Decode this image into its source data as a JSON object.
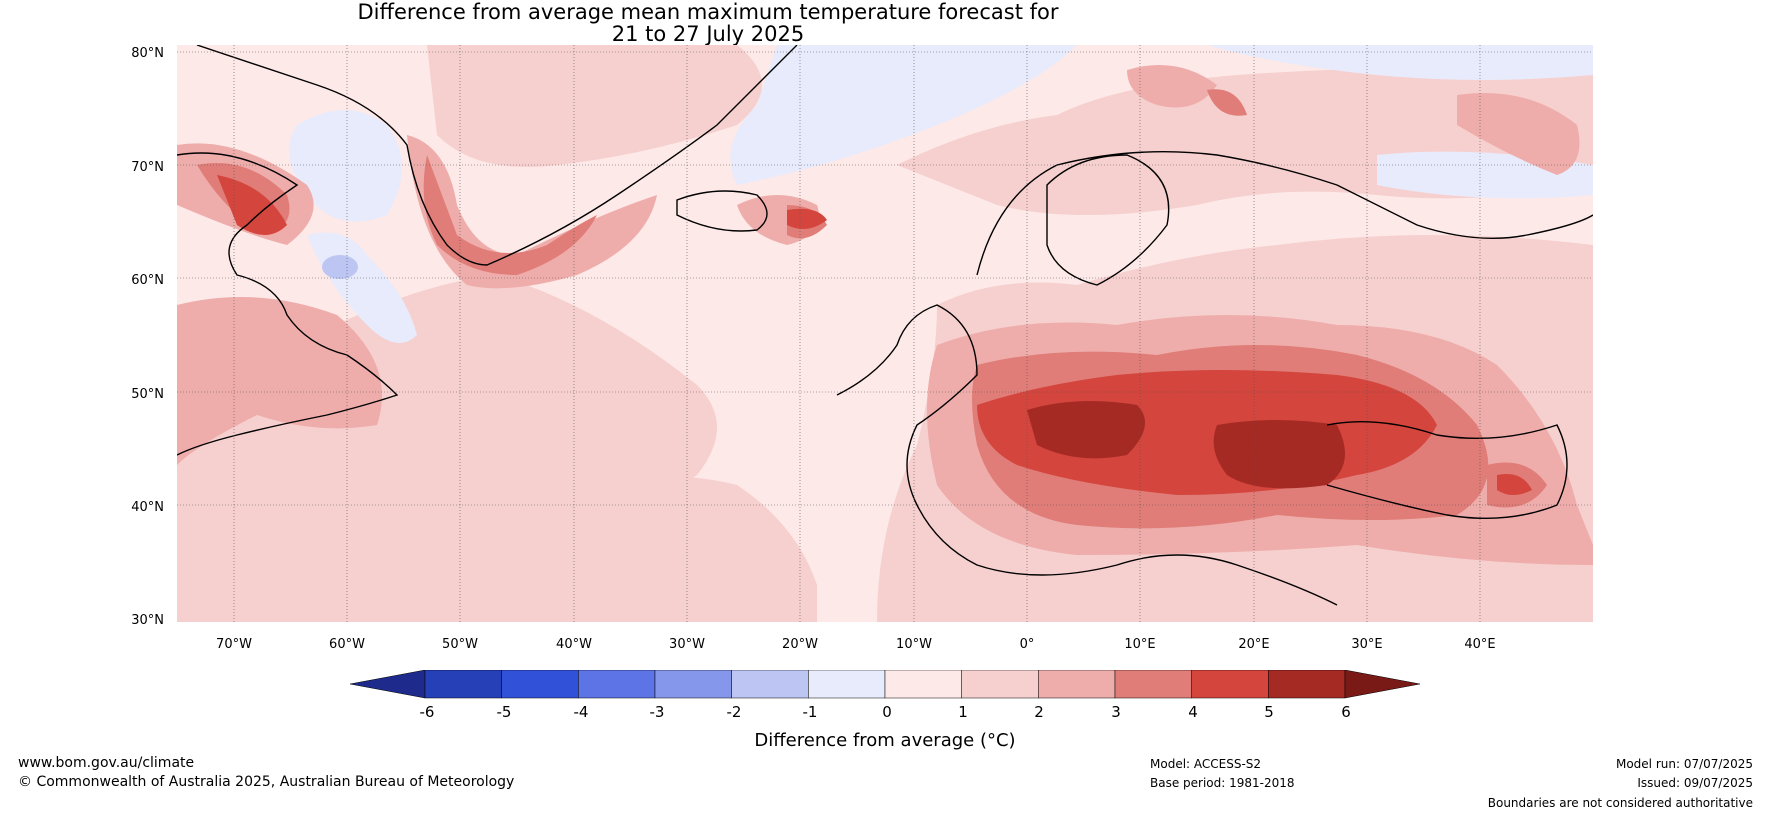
{
  "title": {
    "line1": "Difference from average mean maximum temperature forecast for",
    "line2": "21 to 27 July 2025"
  },
  "map": {
    "lat_ticks": [
      "80°N",
      "70°N",
      "60°N",
      "50°N",
      "40°N",
      "30°N"
    ],
    "lon_ticks": [
      "70°W",
      "60°W",
      "50°W",
      "40°W",
      "30°W",
      "20°W",
      "10°W",
      "0°",
      "10°E",
      "20°E",
      "30°E",
      "40°E"
    ]
  },
  "colorbar": {
    "label": "Difference from average (°C)",
    "ticks": [
      "-6",
      "-5",
      "-4",
      "-3",
      "-2",
      "-1",
      "0",
      "1",
      "2",
      "3",
      "4",
      "5",
      "6"
    ],
    "colors": [
      "#1e2b8c",
      "#2640b8",
      "#3251d9",
      "#5c74e6",
      "#8597ea",
      "#bdc6f3",
      "#e8ebfb",
      "#fde9e8",
      "#f6d0cf",
      "#eeadab",
      "#e07d78",
      "#d4453d",
      "#a62a24",
      "#7a1a16"
    ]
  },
  "footer": {
    "website": "www.bom.gov.au/climate",
    "copyright": "© Commonwealth of Australia 2025, Australian Bureau of Meteorology",
    "model": "Model: ACCESS-S2",
    "base_period": "Base period: 1981-2018",
    "model_run": "Model run: 07/07/2025",
    "issued": "Issued: 09/07/2025",
    "boundaries": "Boundaries are not considered authoritative"
  }
}
